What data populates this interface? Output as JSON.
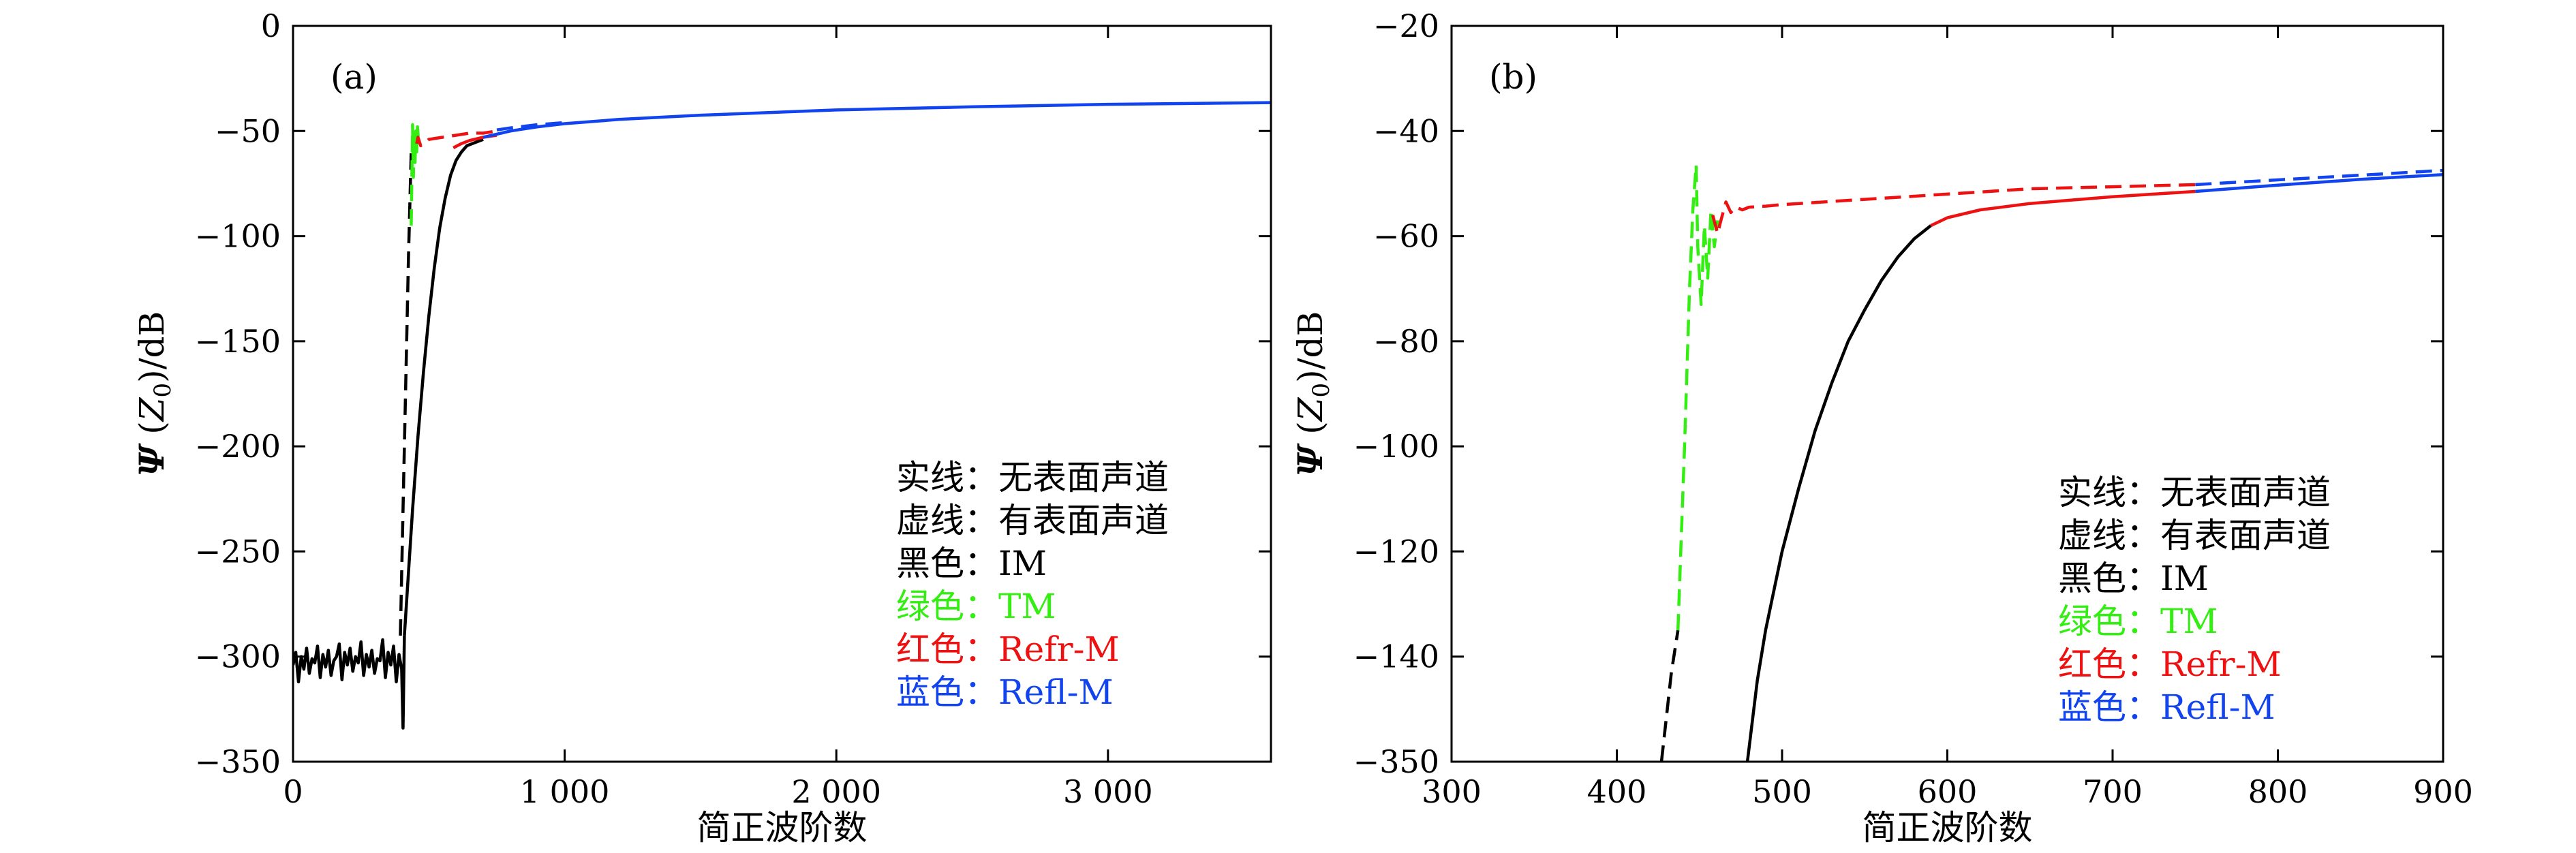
{
  "figure": {
    "colors": {
      "im": "#000000",
      "tm": "#33ee11",
      "refr": "#ee1111",
      "refl": "#1144ee"
    },
    "legend": [
      {
        "label": "实线：无表面声道",
        "color": "#000000"
      },
      {
        "label": "虚线：有表面声道",
        "color": "#000000"
      },
      {
        "label": "黑色：IM",
        "color": "#000000"
      },
      {
        "label": "绿色：TM",
        "color": "#33ee11"
      },
      {
        "label": "红色：Refr-M",
        "color": "#ee1111"
      },
      {
        "label": "蓝色：Refl-M",
        "color": "#1144ee"
      }
    ]
  },
  "chart_data": [
    {
      "panel": "(a)",
      "type": "line",
      "xlabel": "简正波阶数",
      "ylabel": "Ψ (Z0)/dB",
      "xlim": [
        0,
        3600
      ],
      "ylim": [
        -350,
        0
      ],
      "xticks": [
        0,
        1000,
        2000,
        3000
      ],
      "xtick_labels": [
        "0",
        "1 000",
        "2 000",
        "3 000"
      ],
      "yticks": [
        0,
        -50,
        -100,
        -150,
        -200,
        -250,
        -300,
        -350
      ],
      "ytick_labels": [
        "0",
        "−50",
        "−100",
        "−150",
        "−200",
        "−250",
        "−300",
        "−350"
      ],
      "grid": false,
      "legend_position": "bottom-right",
      "series": [
        {
          "key": "im_solid_noise",
          "color": "im",
          "style": "solid",
          "x": [
            0,
            10,
            20,
            30,
            40,
            50,
            60,
            70,
            80,
            90,
            100,
            110,
            120,
            130,
            140,
            150,
            160,
            170,
            180,
            190,
            200,
            210,
            220,
            230,
            240,
            250,
            260,
            270,
            280,
            290,
            300,
            310,
            320,
            330,
            340,
            350,
            360,
            370,
            380,
            390,
            400,
            405,
            410
          ],
          "y": [
            -304,
            -298,
            -312,
            -300,
            -306,
            -296,
            -308,
            -301,
            -303,
            -295,
            -310,
            -299,
            -305,
            -297,
            -309,
            -302,
            -300,
            -294,
            -311,
            -298,
            -304,
            -296,
            -307,
            -300,
            -303,
            -293,
            -309,
            -299,
            -305,
            -297,
            -308,
            -301,
            -302,
            -292,
            -310,
            -298,
            -304,
            -295,
            -312,
            -299,
            -306,
            -334,
            -290
          ]
        },
        {
          "key": "im_solid_rise",
          "color": "im",
          "style": "solid",
          "x": [
            410,
            420,
            440,
            460,
            480,
            500,
            520,
            540,
            560,
            580,
            600,
            620,
            640,
            660,
            680,
            700
          ],
          "y": [
            -290,
            -270,
            -230,
            -195,
            -165,
            -138,
            -115,
            -96,
            -82,
            -71,
            -64,
            -60,
            -57,
            -56,
            -55,
            -54
          ]
        },
        {
          "key": "im_dashed",
          "color": "im",
          "style": "dashed",
          "x": [
            395,
            405,
            415,
            425,
            435
          ],
          "y": [
            -290,
            -230,
            -170,
            -110,
            -60
          ]
        },
        {
          "key": "tm_dashed",
          "color": "tm",
          "style": "dashed",
          "x": [
            435,
            440,
            443,
            446,
            449,
            452,
            455,
            458,
            462
          ],
          "y": [
            -95,
            -47,
            -72,
            -52,
            -65,
            -50,
            -60,
            -48,
            -55
          ]
        },
        {
          "key": "refr_dashed",
          "color": "refr",
          "style": "dashed",
          "x": [
            455,
            460,
            470,
            500,
            550,
            600,
            650,
            700,
            750
          ],
          "y": [
            -56,
            -53,
            -57,
            -54,
            -53,
            -52,
            -51,
            -51,
            -50
          ]
        },
        {
          "key": "refr_solid",
          "color": "refr",
          "style": "solid",
          "x": [
            590,
            620,
            650,
            700,
            750
          ],
          "y": [
            -58,
            -56,
            -54.5,
            -53,
            -52
          ]
        },
        {
          "key": "refl_dashed",
          "color": "refl",
          "style": "dashed",
          "x": [
            750,
            800,
            900,
            1000
          ],
          "y": [
            -49.5,
            -48.5,
            -47,
            -46
          ]
        },
        {
          "key": "refl_solid",
          "color": "refl",
          "style": "solid",
          "x": [
            700,
            750,
            800,
            900,
            1000,
            1200,
            1500,
            2000,
            2500,
            3000,
            3600
          ],
          "y": [
            -53,
            -51.5,
            -50,
            -48,
            -46.5,
            -44.5,
            -42.5,
            -40,
            -38.5,
            -37.3,
            -36.5
          ]
        }
      ]
    },
    {
      "panel": "(b)",
      "type": "line",
      "xlabel": "简正波阶数",
      "ylabel": "Ψ (Z0)/dB",
      "xlim": [
        300,
        900
      ],
      "y_axis": "broken: −20 to −140 linear, bottom tick −350",
      "xticks": [
        300,
        400,
        500,
        600,
        700,
        800,
        900
      ],
      "xtick_labels": [
        "300",
        "400",
        "500",
        "600",
        "700",
        "800",
        "900"
      ],
      "yticks": [
        -20,
        -40,
        -60,
        -80,
        -100,
        -120,
        -140,
        -350
      ],
      "ytick_labels": [
        "−20",
        "−40",
        "−60",
        "−80",
        "−100",
        "−120",
        "−140",
        "−350"
      ],
      "grid": false,
      "legend_position": "bottom-right",
      "series": [
        {
          "key": "im_dashed",
          "color": "im",
          "style": "dashed",
          "x": [
            427,
            433,
            437
          ],
          "y": [
            -153,
            -142,
            -135
          ]
        },
        {
          "key": "tm_dashed",
          "color": "tm",
          "style": "dashed",
          "x": [
            437,
            441,
            444,
            446,
            448,
            449,
            451,
            453,
            455,
            457,
            459,
            461
          ],
          "y": [
            -135,
            -100,
            -70,
            -55,
            -46.5,
            -62,
            -73,
            -58,
            -68,
            -55,
            -62,
            -57
          ]
        },
        {
          "key": "refr_dashed",
          "color": "refr",
          "style": "dashed",
          "x": [
            458,
            461,
            463,
            466,
            469,
            472,
            476,
            480,
            490,
            500,
            550,
            600,
            650,
            700,
            750
          ],
          "y": [
            -56,
            -59.5,
            -57,
            -53.5,
            -55.5,
            -54.5,
            -55,
            -54.5,
            -54.3,
            -54,
            -53,
            -52,
            -51,
            -50.6,
            -50.2
          ]
        },
        {
          "key": "im_solid",
          "color": "im",
          "style": "solid",
          "x": [
            479,
            485,
            490,
            500,
            510,
            520,
            530,
            540,
            550,
            560,
            570,
            580,
            590
          ],
          "y": [
            -153,
            -143,
            -135,
            -120,
            -108,
            -97,
            -88,
            -80,
            -74,
            -68.5,
            -64,
            -60.5,
            -58
          ]
        },
        {
          "key": "refr_solid",
          "color": "refr",
          "style": "solid",
          "x": [
            590,
            600,
            620,
            650,
            700,
            750
          ],
          "y": [
            -58,
            -56.5,
            -55,
            -53.8,
            -52.5,
            -51.5
          ]
        },
        {
          "key": "refl_dashed",
          "color": "refl",
          "style": "dashed",
          "x": [
            750,
            800,
            850,
            900
          ],
          "y": [
            -50.2,
            -49.3,
            -48.4,
            -47.5
          ]
        },
        {
          "key": "refl_solid",
          "color": "refl",
          "style": "solid",
          "x": [
            750,
            800,
            850,
            900
          ],
          "y": [
            -51.5,
            -50.3,
            -49.2,
            -48.3
          ]
        }
      ]
    }
  ]
}
